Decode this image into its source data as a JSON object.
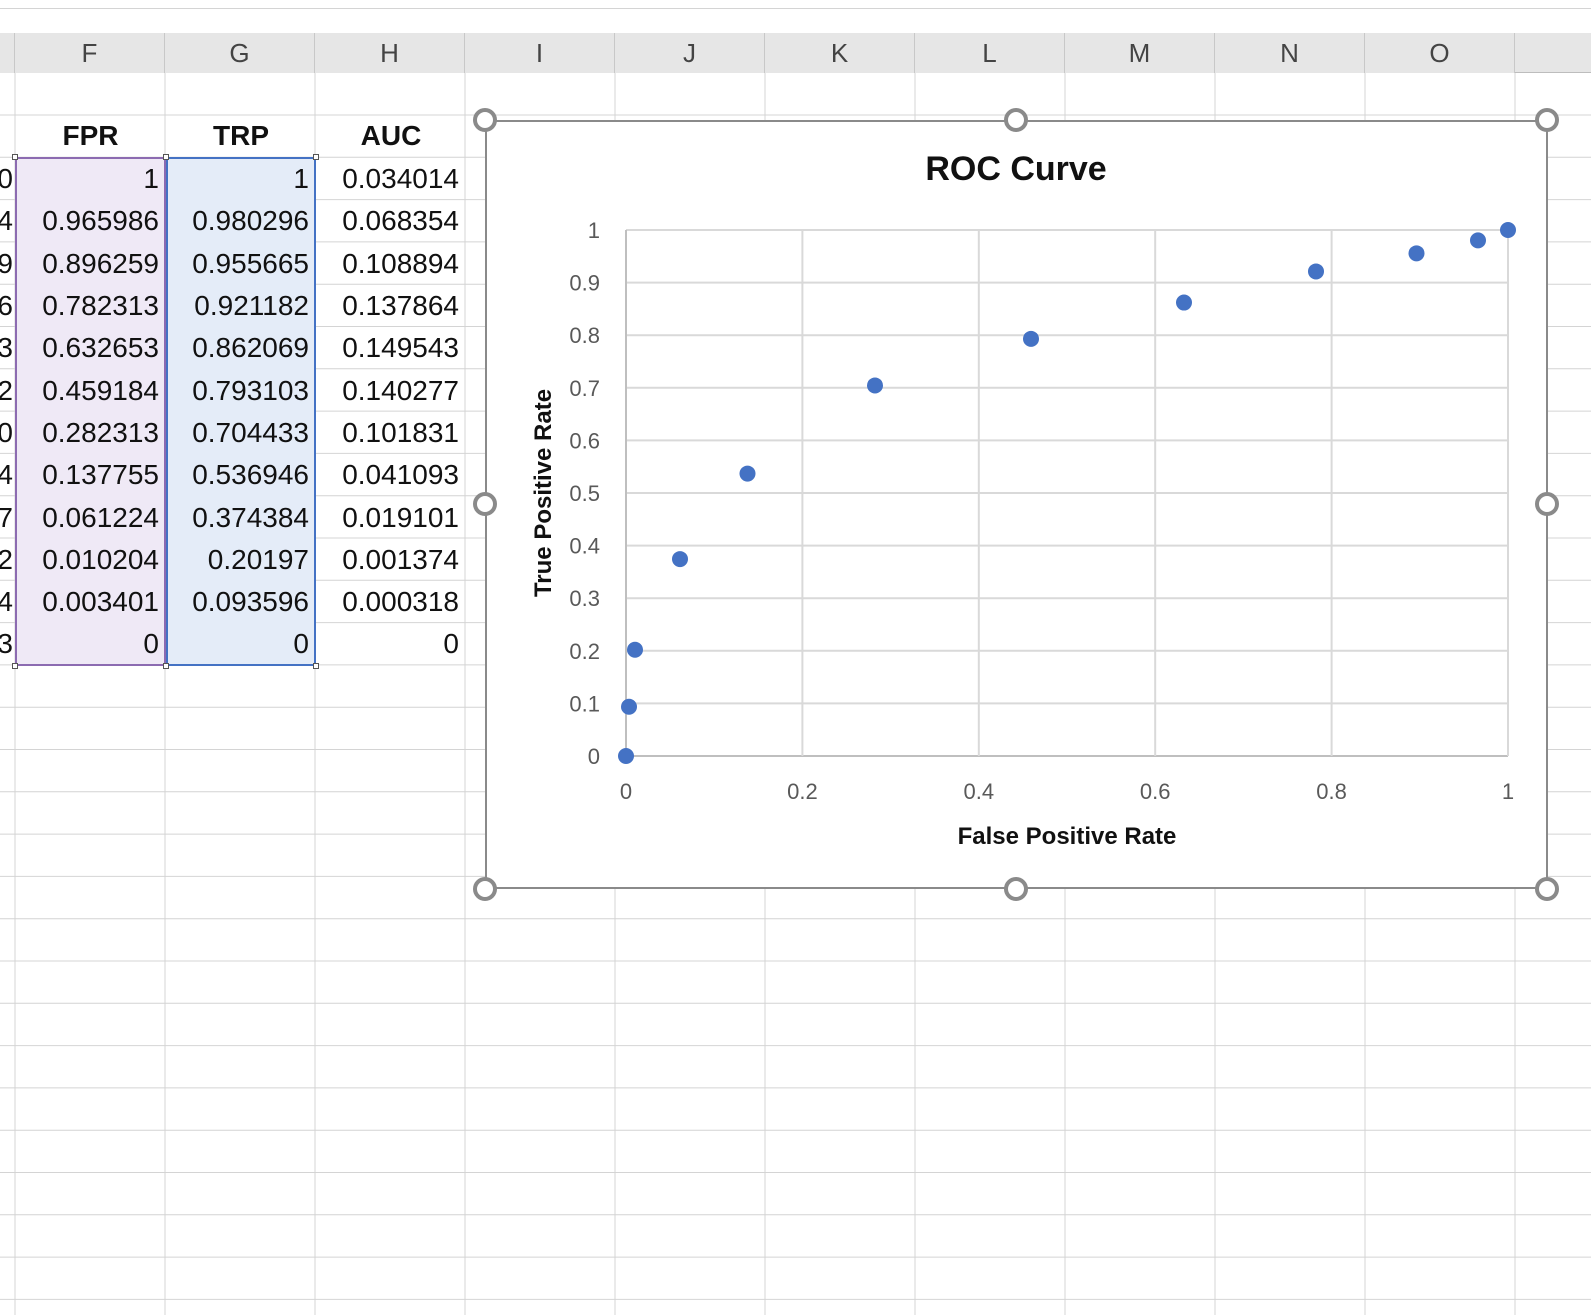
{
  "spreadsheet": {
    "columns": [
      "F",
      "G",
      "H",
      "I",
      "J",
      "K",
      "L",
      "M",
      "N",
      "O"
    ],
    "headers": {
      "fpr": "FPR",
      "trp": "TRP",
      "auc": "AUC"
    },
    "row_stubs": [
      "0",
      "4",
      "9",
      "6",
      "3",
      "2",
      "0",
      "4",
      "7",
      "2",
      "4",
      "3"
    ],
    "rows": [
      {
        "fpr": "1",
        "trp": "1",
        "auc": "0.034014"
      },
      {
        "fpr": "0.965986",
        "trp": "0.980296",
        "auc": "0.068354"
      },
      {
        "fpr": "0.896259",
        "trp": "0.955665",
        "auc": "0.108894"
      },
      {
        "fpr": "0.782313",
        "trp": "0.921182",
        "auc": "0.137864"
      },
      {
        "fpr": "0.632653",
        "trp": "0.862069",
        "auc": "0.149543"
      },
      {
        "fpr": "0.459184",
        "trp": "0.793103",
        "auc": "0.140277"
      },
      {
        "fpr": "0.282313",
        "trp": "0.704433",
        "auc": "0.101831"
      },
      {
        "fpr": "0.137755",
        "trp": "0.536946",
        "auc": "0.041093"
      },
      {
        "fpr": "0.061224",
        "trp": "0.374384",
        "auc": "0.019101"
      },
      {
        "fpr": "0.010204",
        "trp": "0.20197",
        "auc": "0.001374"
      },
      {
        "fpr": "0.003401",
        "trp": "0.093596",
        "auc": "0.000318"
      },
      {
        "fpr": "0",
        "trp": "0",
        "auc": "0"
      }
    ]
  },
  "colors": {
    "marker": "#4472c4",
    "gridline": "#d9d9d9",
    "axis": "#bfbfbf",
    "fpr_selection": "#8c6bb1",
    "trp_selection": "#4472c4"
  },
  "chart_data": {
    "type": "scatter",
    "title": "ROC Curve",
    "xlabel": "False Positive Rate",
    "ylabel": "True Positive Rate",
    "xlim": [
      0,
      1
    ],
    "ylim": [
      0,
      1
    ],
    "xticks": [
      "0",
      "0.2",
      "0.4",
      "0.6",
      "0.8",
      "1"
    ],
    "yticks": [
      "0",
      "0.1",
      "0.2",
      "0.3",
      "0.4",
      "0.5",
      "0.6",
      "0.7",
      "0.8",
      "0.9",
      "1"
    ],
    "grid": true,
    "legend": "none",
    "points": [
      {
        "x": 1,
        "y": 1
      },
      {
        "x": 0.965986,
        "y": 0.980296
      },
      {
        "x": 0.896259,
        "y": 0.955665
      },
      {
        "x": 0.782313,
        "y": 0.921182
      },
      {
        "x": 0.632653,
        "y": 0.862069
      },
      {
        "x": 0.459184,
        "y": 0.793103
      },
      {
        "x": 0.282313,
        "y": 0.704433
      },
      {
        "x": 0.137755,
        "y": 0.536946
      },
      {
        "x": 0.061224,
        "y": 0.374384
      },
      {
        "x": 0.010204,
        "y": 0.20197
      },
      {
        "x": 0.003401,
        "y": 0.093596
      },
      {
        "x": 0,
        "y": 0
      }
    ]
  }
}
